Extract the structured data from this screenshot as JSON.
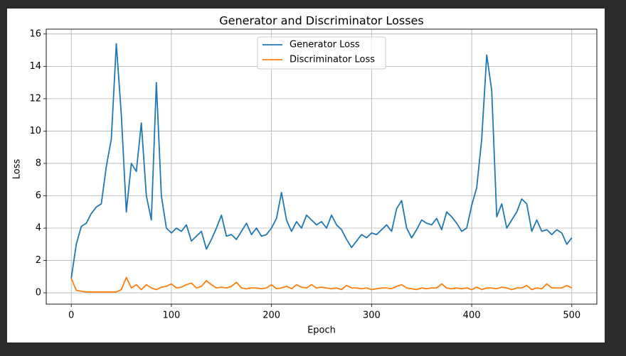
{
  "chart_data": {
    "type": "line",
    "title": "Generator and Discriminator Losses",
    "xlabel": "Epoch",
    "ylabel": "Loss",
    "x": [
      0,
      5,
      10,
      15,
      20,
      25,
      30,
      35,
      40,
      45,
      50,
      55,
      60,
      65,
      70,
      75,
      80,
      85,
      90,
      95,
      100,
      105,
      110,
      115,
      120,
      125,
      130,
      135,
      140,
      145,
      150,
      155,
      160,
      165,
      170,
      175,
      180,
      185,
      190,
      195,
      200,
      205,
      210,
      215,
      220,
      225,
      230,
      235,
      240,
      245,
      250,
      255,
      260,
      265,
      270,
      275,
      280,
      285,
      290,
      295,
      300,
      305,
      310,
      315,
      320,
      325,
      330,
      335,
      340,
      345,
      350,
      355,
      360,
      365,
      370,
      375,
      380,
      385,
      390,
      395,
      400,
      405,
      410,
      415,
      420,
      425,
      430,
      435,
      440,
      445,
      450,
      455,
      460,
      465,
      470,
      475,
      480,
      485,
      490,
      495,
      500
    ],
    "series": [
      {
        "name": "Generator Loss",
        "color": "#1f77b4",
        "values": [
          0.9,
          3.0,
          4.1,
          4.3,
          4.9,
          5.3,
          5.5,
          7.8,
          9.5,
          15.4,
          11.0,
          5.0,
          8.0,
          7.5,
          10.5,
          6.0,
          4.5,
          13.0,
          6.0,
          4.0,
          3.7,
          4.0,
          3.8,
          4.2,
          3.2,
          3.5,
          3.8,
          2.7,
          3.3,
          4.0,
          4.8,
          3.5,
          3.6,
          3.3,
          3.8,
          4.3,
          3.6,
          4.0,
          3.5,
          3.6,
          4.0,
          4.6,
          6.2,
          4.5,
          3.8,
          4.4,
          4.0,
          4.8,
          4.5,
          4.2,
          4.4,
          4.0,
          4.8,
          4.2,
          3.9,
          3.3,
          2.8,
          3.2,
          3.6,
          3.4,
          3.7,
          3.6,
          3.9,
          4.2,
          3.8,
          5.2,
          5.7,
          4.0,
          3.4,
          3.9,
          4.5,
          4.3,
          4.2,
          4.6,
          3.9,
          5.0,
          4.7,
          4.3,
          3.8,
          4.0,
          5.4,
          6.5,
          9.5,
          14.7,
          12.5,
          4.7,
          5.5,
          4.0,
          4.5,
          5.0,
          5.8,
          5.5,
          3.8,
          4.5,
          3.8,
          3.9,
          3.6,
          3.9,
          3.7,
          3.0,
          3.4
        ]
      },
      {
        "name": "Discriminator Loss",
        "color": "#ff7f0e",
        "values": [
          0.9,
          0.15,
          0.1,
          0.05,
          0.05,
          0.05,
          0.05,
          0.05,
          0.05,
          0.05,
          0.2,
          0.95,
          0.3,
          0.5,
          0.2,
          0.5,
          0.3,
          0.2,
          0.35,
          0.4,
          0.55,
          0.3,
          0.35,
          0.5,
          0.6,
          0.3,
          0.4,
          0.75,
          0.5,
          0.3,
          0.35,
          0.3,
          0.4,
          0.65,
          0.3,
          0.25,
          0.3,
          0.3,
          0.25,
          0.3,
          0.5,
          0.25,
          0.3,
          0.4,
          0.25,
          0.5,
          0.35,
          0.3,
          0.5,
          0.3,
          0.35,
          0.3,
          0.25,
          0.3,
          0.2,
          0.45,
          0.3,
          0.3,
          0.25,
          0.3,
          0.2,
          0.25,
          0.3,
          0.3,
          0.25,
          0.4,
          0.5,
          0.3,
          0.25,
          0.2,
          0.3,
          0.25,
          0.3,
          0.3,
          0.55,
          0.3,
          0.25,
          0.3,
          0.25,
          0.3,
          0.2,
          0.35,
          0.2,
          0.3,
          0.3,
          0.25,
          0.35,
          0.3,
          0.2,
          0.3,
          0.3,
          0.45,
          0.2,
          0.3,
          0.25,
          0.55,
          0.3,
          0.3,
          0.3,
          0.45,
          0.3
        ]
      }
    ],
    "xlim": [
      -25,
      525
    ],
    "xticks": [
      0,
      100,
      200,
      300,
      400,
      500
    ],
    "ylim": [
      -0.7,
      16.3
    ],
    "yticks": [
      0,
      2,
      4,
      6,
      8,
      10,
      12,
      14,
      16
    ],
    "grid": true,
    "legend": "upper center"
  }
}
